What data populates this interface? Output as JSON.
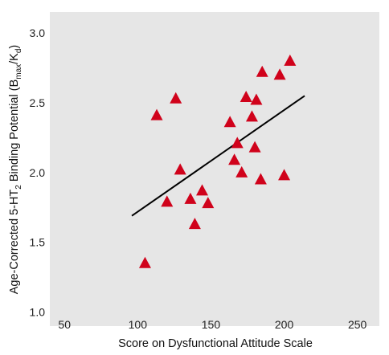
{
  "chart_data": {
    "type": "scatter",
    "title": "",
    "xlabel": "Score on Dysfunctional Attitude Scale",
    "ylabel_parts": {
      "pre": "Age-Corrected 5-HT",
      "sub2": "2",
      "mid": " Binding Potential (B",
      "subMax": "max",
      "slash": "/K",
      "subD": "d",
      "post": ")"
    },
    "xlim": [
      40,
      265
    ],
    "ylim": [
      0.9,
      3.15
    ],
    "x_ticks": [
      50,
      100,
      150,
      200,
      250
    ],
    "y_ticks": [
      1.0,
      1.5,
      2.0,
      2.5,
      3.0
    ],
    "x_tick_labels": [
      "50",
      "100",
      "150",
      "200",
      "250"
    ],
    "y_tick_labels": [
      "1.0",
      "1.5",
      "2.0",
      "2.5",
      "3.0"
    ],
    "grid": false,
    "background_color": "#e6e6e6",
    "marker": "triangle",
    "marker_color": "#d0021b",
    "points": [
      {
        "x": 105,
        "y": 1.35
      },
      {
        "x": 113,
        "y": 2.41
      },
      {
        "x": 120,
        "y": 1.79
      },
      {
        "x": 126,
        "y": 2.53
      },
      {
        "x": 129,
        "y": 2.02
      },
      {
        "x": 136,
        "y": 1.81
      },
      {
        "x": 139,
        "y": 1.63
      },
      {
        "x": 144,
        "y": 1.87
      },
      {
        "x": 148,
        "y": 1.78
      },
      {
        "x": 163,
        "y": 2.36
      },
      {
        "x": 166,
        "y": 2.09
      },
      {
        "x": 168,
        "y": 2.21
      },
      {
        "x": 171,
        "y": 2.0
      },
      {
        "x": 174,
        "y": 2.54
      },
      {
        "x": 178,
        "y": 2.4
      },
      {
        "x": 180,
        "y": 2.18
      },
      {
        "x": 181,
        "y": 2.52
      },
      {
        "x": 184,
        "y": 1.95
      },
      {
        "x": 185,
        "y": 2.72
      },
      {
        "x": 197,
        "y": 2.7
      },
      {
        "x": 200,
        "y": 1.98
      },
      {
        "x": 204,
        "y": 2.8
      }
    ],
    "regression_line": {
      "x1": 96,
      "y1": 1.69,
      "x2": 214,
      "y2": 2.55
    }
  }
}
